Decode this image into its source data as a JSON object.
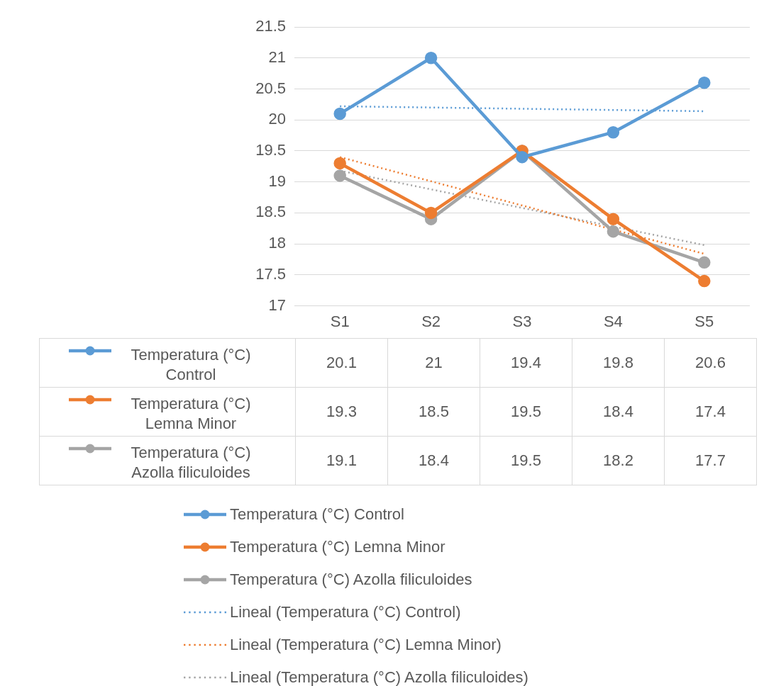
{
  "chart_data": {
    "type": "line",
    "categories": [
      "S1",
      "S2",
      "S3",
      "S4",
      "S5"
    ],
    "series": [
      {
        "name": "Temperatura (°C) Control",
        "color": "#5b9bd5",
        "values": [
          20.1,
          21,
          19.4,
          19.8,
          20.6
        ],
        "value_labels": [
          "20.1",
          "21",
          "19.4",
          "19.8",
          "20.6"
        ]
      },
      {
        "name": "Temperatura (°C) Lemna Minor",
        "color": "#ed7d31",
        "values": [
          19.3,
          18.5,
          19.5,
          18.4,
          17.4
        ],
        "value_labels": [
          "19.3",
          "18.5",
          "19.5",
          "18.4",
          "17.4"
        ]
      },
      {
        "name": "Temperatura (°C) Azolla filiculoides",
        "color": "#a5a5a5",
        "values": [
          19.1,
          18.4,
          19.5,
          18.2,
          17.7
        ],
        "value_labels": [
          "19.1",
          "18.4",
          "19.5",
          "18.2",
          "17.7"
        ]
      },
      {
        "name": "Lineal (Temperatura (°C) Control)",
        "color": "#5b9bd5",
        "x": [
          "S1",
          "S5"
        ],
        "values": [
          20.22,
          20.14
        ],
        "line_style": "dotted",
        "marker": "none"
      },
      {
        "name": "Lineal (Temperatura (°C) Lemna Minor)",
        "color": "#ed7d31",
        "x": [
          "S1",
          "S5"
        ],
        "values": [
          19.4,
          17.84
        ],
        "line_style": "dotted",
        "marker": "none"
      },
      {
        "name": "Lineal (Temperatura (°C) Azolla filiculoides)",
        "color": "#a5a5a5",
        "x": [
          "S1",
          "S5"
        ],
        "values": [
          19.18,
          17.98
        ],
        "line_style": "dotted",
        "marker": "none"
      }
    ],
    "ylim": [
      17,
      21.5
    ],
    "yticks": [
      17,
      17.5,
      18,
      18.5,
      19,
      19.5,
      20,
      20.5,
      21,
      21.5
    ],
    "grid": "y",
    "legend": "bottom",
    "marker": "circle",
    "line_style": "solid"
  }
}
